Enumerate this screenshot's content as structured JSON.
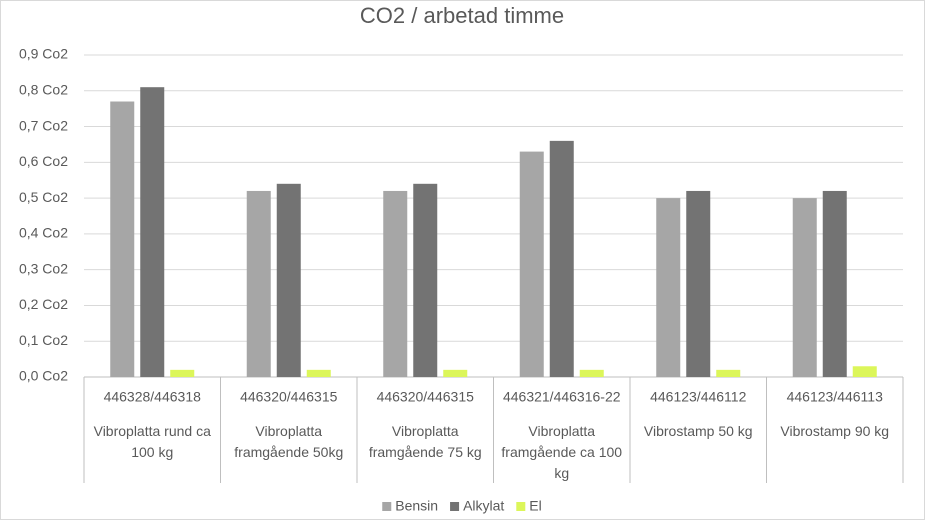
{
  "chart_data": {
    "type": "bar",
    "title": "CO2 / arbetad timme",
    "categories": [
      "446328/446318",
      "446320/446315",
      "446320/446315",
      "446321/446316-22",
      "446123/446112",
      "446123/446113"
    ],
    "category_names": [
      "Vibroplatta rund ca 100 kg",
      "Vibroplatta framgående 50kg",
      "Vibroplatta framgående 75 kg",
      "Vibroplatta framgående ca 100 kg",
      "Vibrostamp 50 kg",
      "Vibrostamp 90 kg"
    ],
    "series": [
      {
        "name": "Bensin",
        "color": "#a6a6a6",
        "values": [
          0.77,
          0.52,
          0.52,
          0.63,
          0.5,
          0.5
        ]
      },
      {
        "name": "Alkylat",
        "color": "#737373",
        "values": [
          0.81,
          0.54,
          0.54,
          0.66,
          0.52,
          0.52
        ]
      },
      {
        "name": "El",
        "color": "#dcf65a",
        "values": [
          0.02,
          0.02,
          0.02,
          0.02,
          0.02,
          0.03
        ]
      }
    ],
    "ylim": [
      0,
      0.9
    ],
    "yticks": [
      {
        "value": 0,
        "label": "0,0 Co2"
      },
      {
        "value": 0.1,
        "label": "0,1 Co2"
      },
      {
        "value": 0.2,
        "label": "0,2 Co2"
      },
      {
        "value": 0.3,
        "label": "0,3 Co2"
      },
      {
        "value": 0.4,
        "label": "0,4 Co2"
      },
      {
        "value": 0.5,
        "label": "0,5 Co2"
      },
      {
        "value": 0.6,
        "label": "0,6 Co2"
      },
      {
        "value": 0.7,
        "label": "0,7 Co2"
      },
      {
        "value": 0.8,
        "label": "0,8 Co2"
      },
      {
        "value": 0.9,
        "label": "0,9 Co2"
      }
    ],
    "grid": true,
    "legend": "bottom"
  }
}
